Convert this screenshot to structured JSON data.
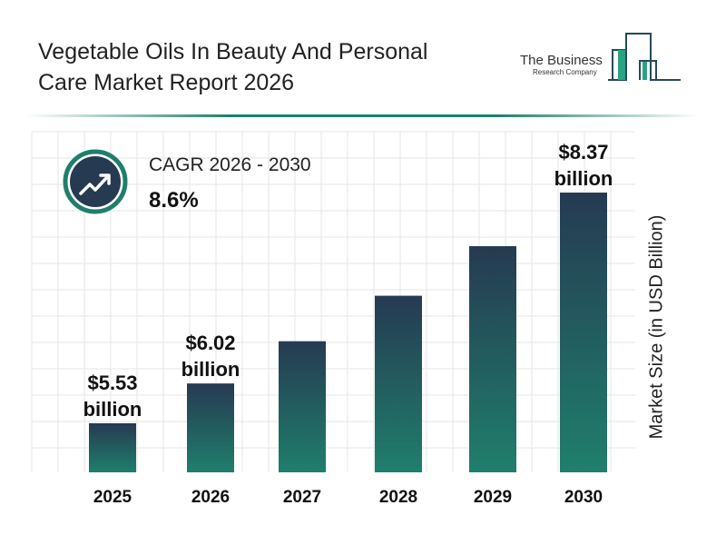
{
  "title": "Vegetable Oils In Beauty And Personal Care Market Report 2026",
  "logo": {
    "line1": "The Business",
    "line2": "Research Company"
  },
  "cagr": {
    "label": "CAGR 2026 - 2030",
    "value": "8.6%",
    "icon": "trending-up-icon"
  },
  "colors": {
    "bar_top": "#263a52",
    "bar_bottom": "#1f7f6c",
    "accent": "#1f7f6c"
  },
  "chart_data": {
    "type": "bar",
    "categories": [
      "2025",
      "2026",
      "2027",
      "2028",
      "2029",
      "2030"
    ],
    "values": [
      5.53,
      6.02,
      6.54,
      7.1,
      7.71,
      8.37
    ],
    "data_labels": [
      [
        "$5.53",
        "billion"
      ],
      [
        "$6.02",
        "billion"
      ],
      null,
      null,
      null,
      [
        "$8.37",
        "billion"
      ]
    ],
    "ylabel": "Market Size (in USD Billion)",
    "grid": true
  }
}
